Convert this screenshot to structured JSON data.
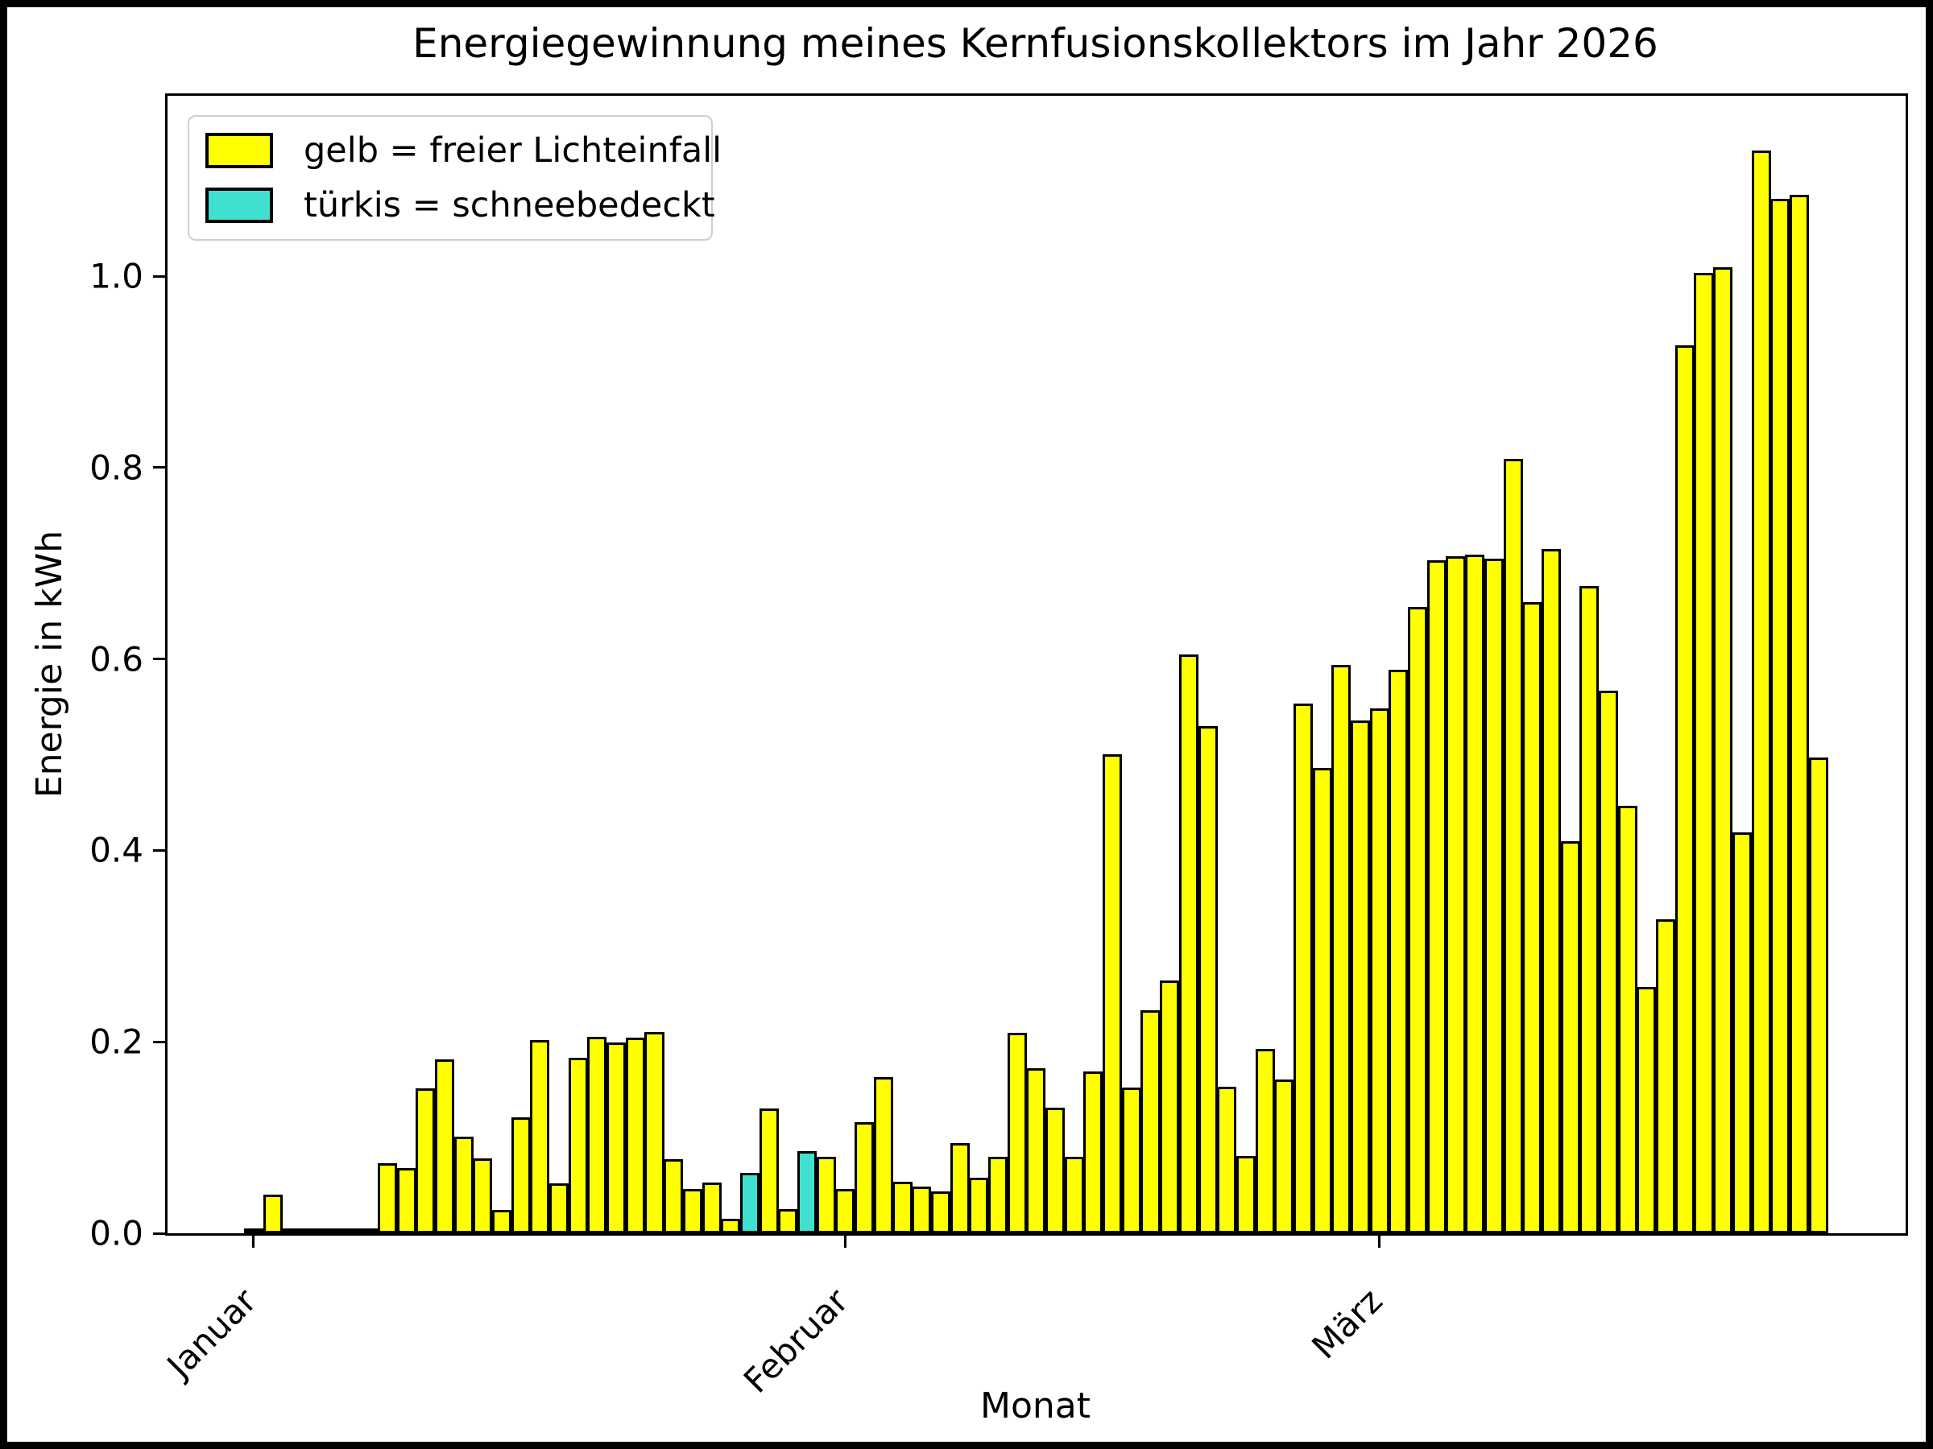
{
  "figure": {
    "title": "Energiegewinnung meines Kernfusionskollektors im Jahr 2026",
    "xlabel": "Monat",
    "ylabel": "Energie in kWh"
  },
  "legend": {
    "items": [
      {
        "name": "free-light",
        "label": "gelb = freier Lichteinfall",
        "color": "#FFFF00"
      },
      {
        "name": "snow-covered",
        "label": "türkis = schneebedeckt",
        "color": "#40E0D0"
      }
    ]
  },
  "chart_data": {
    "type": "bar",
    "title": "Energiegewinnung meines Kernfusionskollektors im Jahr 2026",
    "xlabel": "Monat",
    "ylabel": "Energie in kWh",
    "ylim": [
      0,
      1.19
    ],
    "grid": false,
    "legend_position": "upper left",
    "bar_colors": {
      "free_light": "#FFFF00",
      "snow_covered": "#40E0D0",
      "edge": "#000000"
    },
    "yticks": [
      {
        "value": 0.0,
        "label": "0.0"
      },
      {
        "value": 0.2,
        "label": "0.2"
      },
      {
        "value": 0.4,
        "label": "0.4"
      },
      {
        "value": 0.6,
        "label": "0.6"
      },
      {
        "value": 0.8,
        "label": "0.8"
      },
      {
        "value": 1.0,
        "label": "1.0"
      }
    ],
    "xticks": [
      {
        "label": "Januar",
        "day_index": 0
      },
      {
        "label": "Februar",
        "day_index": 31
      },
      {
        "label": "März",
        "day_index": 59
      }
    ],
    "start_day": "1. Januar 2026",
    "values_kwh": [
      0.003,
      0.04,
      0.003,
      0.002,
      0.004,
      0.002,
      0.004,
      0.073,
      0.068,
      0.151,
      0.182,
      0.101,
      0.078,
      0.024,
      0.121,
      0.202,
      0.052,
      0.183,
      0.205,
      0.199,
      0.204,
      0.21,
      0.077,
      0.046,
      0.053,
      0.015,
      0.063,
      0.13,
      0.025,
      0.086,
      0.08,
      0.046,
      0.116,
      0.163,
      0.054,
      0.049,
      0.044,
      0.094,
      0.058,
      0.08,
      0.209,
      0.172,
      0.131,
      0.08,
      0.169,
      0.5,
      0.152,
      0.233,
      0.264,
      0.605,
      0.53,
      0.153,
      0.081,
      0.193,
      0.161,
      0.553,
      0.486,
      0.594,
      0.536,
      0.548,
      0.589,
      0.654,
      0.703,
      0.707,
      0.709,
      0.705,
      0.809,
      0.659,
      0.715,
      0.41,
      0.676,
      0.567,
      0.447,
      0.257,
      0.328,
      0.928,
      1.003,
      1.009,
      0.419,
      1.131,
      1.081,
      1.085,
      0.497
    ],
    "snow_day_indices": [
      26,
      29
    ]
  }
}
